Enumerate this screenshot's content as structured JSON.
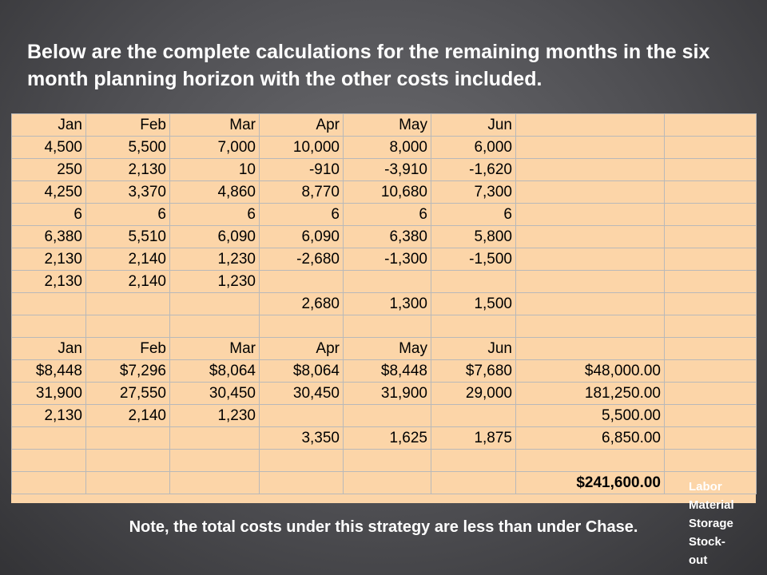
{
  "title": "Below are the complete calculations for the remaining months in the six month planning horizon with the other costs included.",
  "note": "Note, the total costs under this strategy are less than under Chase.",
  "table": {
    "top_rows": [
      [
        "Jan",
        "Feb",
        "Mar",
        "Apr",
        "May",
        "Jun",
        "",
        ""
      ],
      [
        "4,500",
        "5,500",
        "7,000",
        "10,000",
        "8,000",
        "6,000",
        "",
        ""
      ],
      [
        "250",
        "2,130",
        "10",
        "-910",
        "-3,910",
        "-1,620",
        "",
        ""
      ],
      [
        "4,250",
        "3,370",
        "4,860",
        "8,770",
        "10,680",
        "7,300",
        "",
        ""
      ],
      [
        "6",
        "6",
        "6",
        "6",
        "6",
        "6",
        "",
        ""
      ],
      [
        "6,380",
        "5,510",
        "6,090",
        "6,090",
        "6,380",
        "5,800",
        "",
        ""
      ],
      [
        "2,130",
        "2,140",
        "1,230",
        "-2,680",
        "-1,300",
        "-1,500",
        "",
        ""
      ],
      [
        "2,130",
        "2,140",
        "1,230",
        "",
        "",
        "",
        "",
        ""
      ],
      [
        "",
        "",
        "",
        "2,680",
        "1,300",
        "1,500",
        "",
        ""
      ],
      [
        "",
        "",
        "",
        "",
        "",
        "",
        "",
        ""
      ]
    ],
    "bottom_rows": [
      [
        "Jan",
        "Feb",
        "Mar",
        "Apr",
        "May",
        "Jun",
        "",
        ""
      ],
      [
        "$8,448",
        "$7,296",
        "$8,064",
        "$8,064",
        "$8,448",
        "$7,680",
        "$48,000.00",
        ""
      ],
      [
        "31,900",
        "27,550",
        "30,450",
        "30,450",
        "31,900",
        "29,000",
        "181,250.00",
        ""
      ],
      [
        "2,130",
        "2,140",
        "1,230",
        "",
        "",
        "",
        "5,500.00",
        ""
      ],
      [
        "",
        "",
        "",
        "3,350",
        "1,625",
        "1,875",
        "6,850.00",
        ""
      ],
      [
        "",
        "",
        "",
        "",
        "",
        "",
        "",
        ""
      ],
      [
        "",
        "",
        "",
        "",
        "",
        "",
        "$241,600.00",
        ""
      ]
    ],
    "cost_labels": [
      "Labor",
      "Material",
      "Storage",
      "Stock-",
      "out"
    ]
  }
}
